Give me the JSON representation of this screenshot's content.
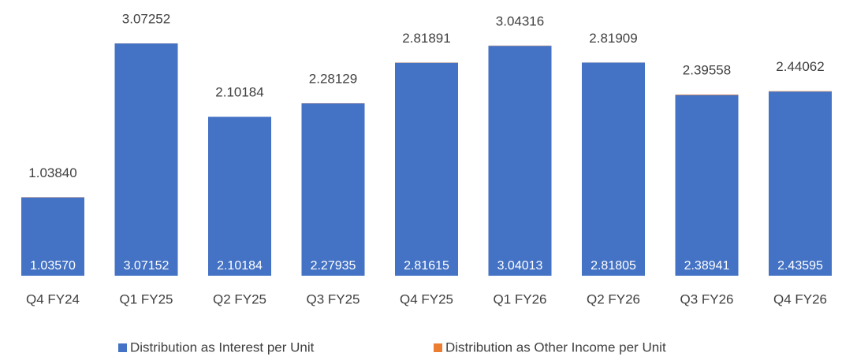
{
  "chart_data": {
    "type": "stacked_bar",
    "categories": [
      "Q4 FY24",
      "Q1 FY25",
      "Q2 FY25",
      "Q3 FY25",
      "Q4 FY25",
      "Q1 FY26",
      "Q2 FY26",
      "Q3 FY26",
      "Q4 FY26"
    ],
    "series": [
      {
        "name": "Distribution as Interest per Unit",
        "color": "#4472c4",
        "values": [
          1.0357,
          3.07152,
          2.10184,
          2.27935,
          2.81615,
          3.04013,
          2.81805,
          2.38941,
          2.43595
        ],
        "value_labels": [
          "1.03570",
          "3.07152",
          "2.10184",
          "2.27935",
          "2.81615",
          "3.04013",
          "2.81805",
          "2.38941",
          "2.43595"
        ]
      },
      {
        "name": "Distribution as Other Income per Unit",
        "color": "#ed7d31",
        "values": [
          0.0027,
          0.001,
          0,
          0.00194,
          0.00276,
          0.00303,
          0.00104,
          0.00617,
          0.00467
        ]
      }
    ],
    "total_labels": [
      "1.03840",
      "3.07252",
      "2.10184",
      "2.28129",
      "2.81891",
      "3.04316",
      "2.81909",
      "2.39558",
      "2.44062"
    ],
    "ylim": [
      0,
      3.5
    ],
    "legend": "bottom"
  }
}
